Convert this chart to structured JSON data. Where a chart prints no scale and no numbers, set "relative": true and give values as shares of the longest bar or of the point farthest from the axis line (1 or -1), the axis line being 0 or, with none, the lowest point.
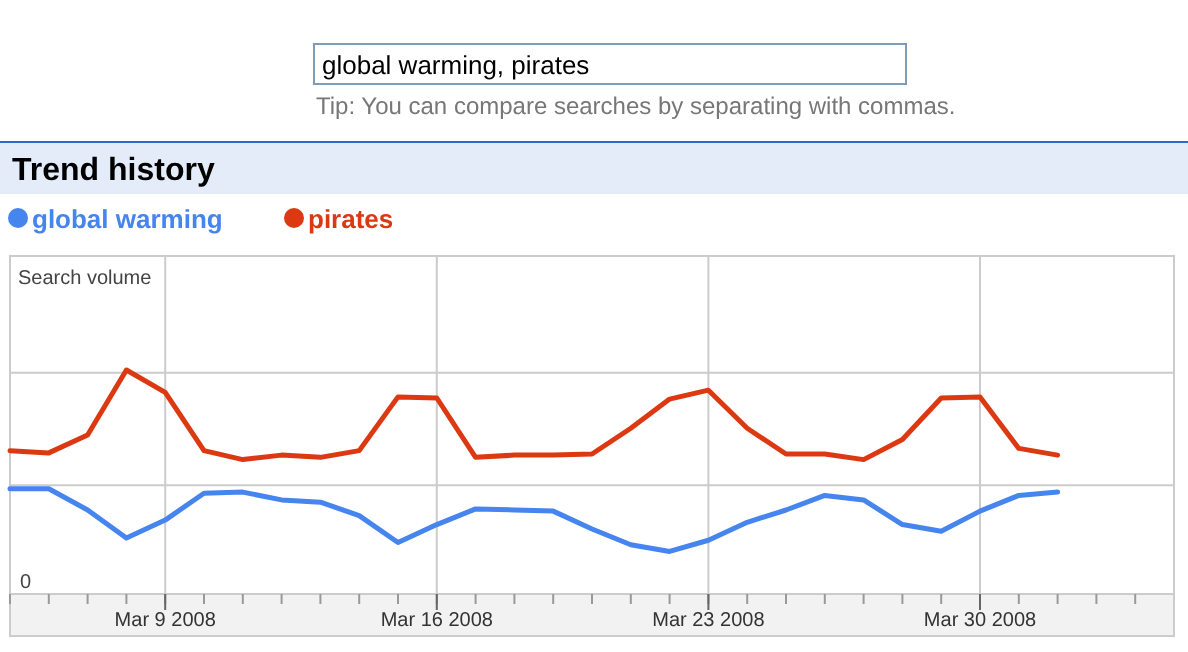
{
  "chart_data": {
    "type": "line",
    "title": "Trend history",
    "ylabel": "Search volume",
    "relative": true,
    "legend": "top left",
    "grid": true,
    "annotations": [
      "global warming, pirates",
      "Tip: You can compare searches by separating with commas.",
      "0"
    ],
    "x": [
      "2008-03-05",
      "2008-03-06",
      "2008-03-07",
      "2008-03-08",
      "2008-03-09",
      "2008-03-10",
      "2008-03-11",
      "2008-03-12",
      "2008-03-13",
      "2008-03-14",
      "2008-03-15",
      "2008-03-16",
      "2008-03-17",
      "2008-03-18",
      "2008-03-19",
      "2008-03-20",
      "2008-03-21",
      "2008-03-22",
      "2008-03-23",
      "2008-03-24",
      "2008-03-25",
      "2008-03-26",
      "2008-03-27",
      "2008-03-28",
      "2008-03-29",
      "2008-03-30",
      "2008-03-31",
      "2008-04-01"
    ],
    "xlim": [
      "2008-03-05",
      "2008-04-04"
    ],
    "xticks": [
      {
        "value": "2008-03-09",
        "label": "Mar 9 2008"
      },
      {
        "value": "2008-03-16",
        "label": "Mar 16 2008"
      },
      {
        "value": "2008-03-23",
        "label": "Mar 23 2008"
      },
      {
        "value": "2008-03-30",
        "label": "Mar 30 2008"
      }
    ],
    "series": [
      {
        "name": "global warming",
        "color": "#4684ee",
        "values": [
          0.47,
          0.47,
          0.375,
          0.25,
          0.33,
          0.45,
          0.455,
          0.42,
          0.41,
          0.35,
          0.23,
          0.31,
          0.38,
          0.375,
          0.37,
          0.29,
          0.22,
          0.19,
          0.24,
          0.32,
          0.375,
          0.44,
          0.42,
          0.31,
          0.28,
          0.37,
          0.44,
          0.455
        ]
      },
      {
        "name": "pirates",
        "color": "#dc3912",
        "values": [
          0.64,
          0.63,
          0.71,
          1,
          0.9,
          0.64,
          0.6,
          0.62,
          0.61,
          0.64,
          0.88,
          0.875,
          0.61,
          0.62,
          0.62,
          0.625,
          0.74,
          0.87,
          0.91,
          0.74,
          0.625,
          0.625,
          0.6,
          0.69,
          0.875,
          0.88,
          0.65,
          0.62
        ]
      }
    ]
  }
}
